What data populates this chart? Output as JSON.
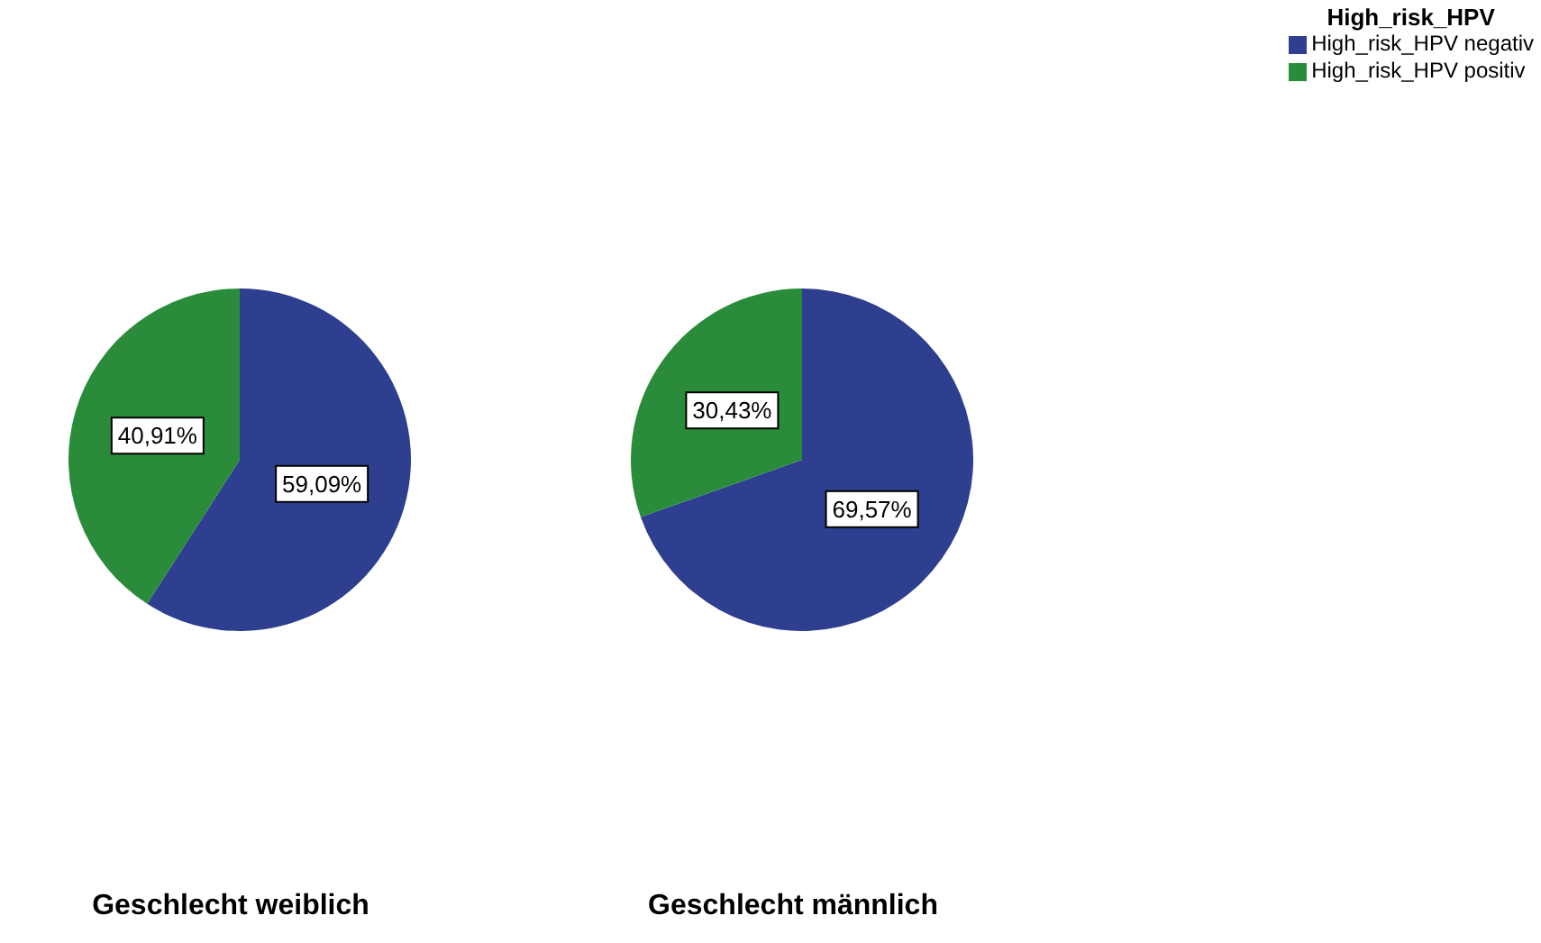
{
  "chart_data": [
    {
      "type": "pie",
      "title": "Geschlecht weiblich",
      "categories": [
        null,
        null
      ],
      "values": [
        59.09,
        40.91
      ],
      "colors": [
        "#2e3f8f",
        "#2a8c3a"
      ],
      "value_labels": [
        "59,09%",
        "40,91%"
      ],
      "legend": false
    },
    {
      "type": "pie",
      "title": "Geschlecht männlich",
      "categories": [
        "High_risk_HPV negativ",
        "High_risk_HPV positiv"
      ],
      "values": [
        69.57,
        30.43
      ],
      "colors": [
        "#2e3f8f",
        "#2a8c3a"
      ],
      "value_labels": [
        "69,57%",
        "30,43%"
      ],
      "legend": "top right",
      "legend_title": "High_risk_HPV"
    }
  ]
}
